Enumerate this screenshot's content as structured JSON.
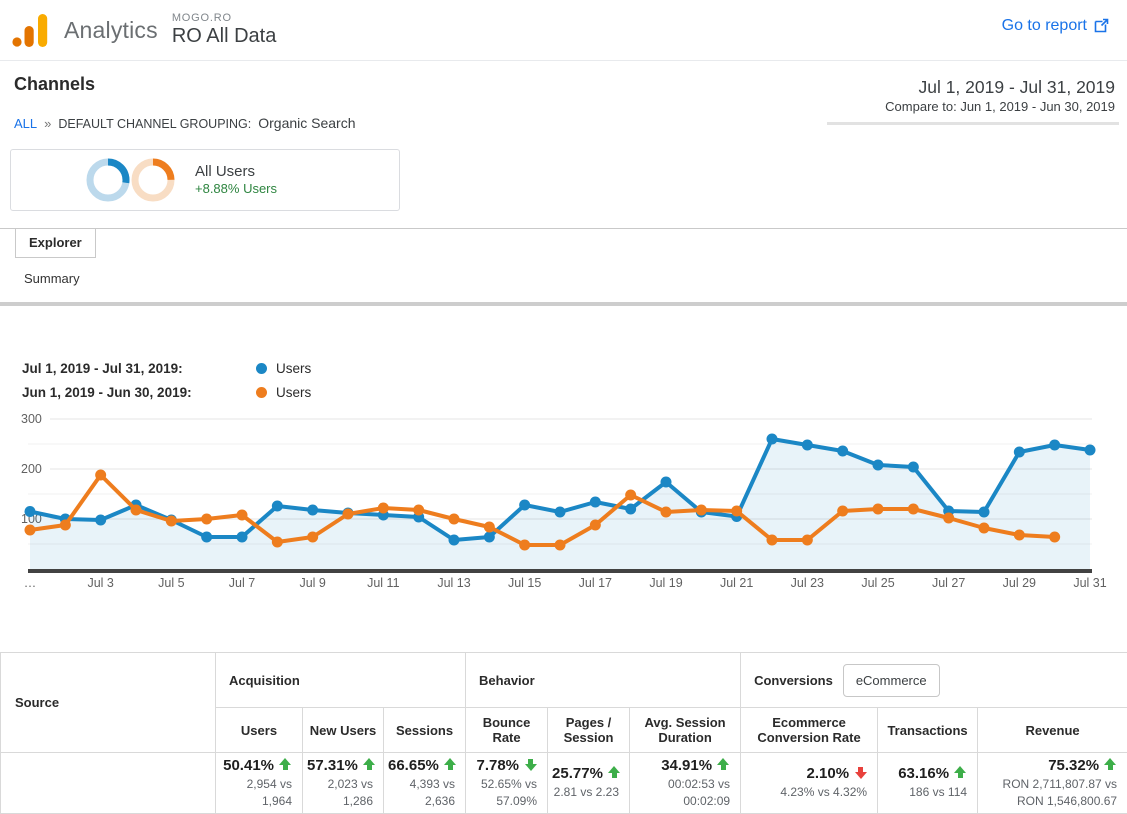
{
  "header": {
    "app_name": "Analytics",
    "account": "MOGO.RO",
    "view": "RO All Data",
    "go_to_report": "Go to report"
  },
  "report": {
    "title": "Channels",
    "breadcrumb": {
      "all": "ALL",
      "separator": "»",
      "label": "DEFAULT CHANNEL GROUPING:",
      "value": "Organic Search"
    },
    "date_range": "Jul 1, 2019 - Jul 31, 2019",
    "compare_to": "Compare to: Jun 1, 2019 - Jun 30, 2019",
    "segment": {
      "name": "All Users",
      "change": "+8.88% Users"
    },
    "tab": "Explorer",
    "subtab": "Summary"
  },
  "colors": {
    "blue": "#1b87c5",
    "blue_light": "#bcd9ec",
    "orange": "#ee7d1e",
    "orange_light": "#f8ddc4",
    "green": "#2e8540",
    "link_blue": "#1a73e8"
  },
  "legend": {
    "rows": [
      {
        "period": "Jul 1, 2019 - Jul 31, 2019:",
        "series": "Users",
        "color": "#1b87c5"
      },
      {
        "period": "Jun 1, 2019 - Jun 30, 2019:",
        "series": "Users",
        "color": "#ee7d1e"
      }
    ]
  },
  "chart_data": {
    "type": "line",
    "title": "",
    "xlabel": "",
    "ylabel": "Users",
    "ylim": [
      0,
      330
    ],
    "y_ticks": [
      100,
      200,
      300
    ],
    "y_minor_ticks": [
      50,
      150,
      250
    ],
    "x_labels": [
      "…",
      "Jul 3",
      "Jul 5",
      "Jul 7",
      "Jul 9",
      "Jul 11",
      "Jul 13",
      "Jul 15",
      "Jul 17",
      "Jul 19",
      "Jul 21",
      "Jul 23",
      "Jul 25",
      "Jul 27",
      "Jul 29",
      "Jul 31"
    ],
    "x_label_every": 2,
    "days": 31,
    "series": [
      {
        "name": "Users",
        "period": "Jul 1, 2019 - Jul 31, 2019",
        "color": "#1b87c5",
        "area_fill": "rgba(27,135,197,0.10)",
        "values": [
          115,
          100,
          98,
          128,
          98,
          64,
          64,
          126,
          118,
          112,
          108,
          104,
          58,
          64,
          128,
          114,
          134,
          120,
          174,
          114,
          105,
          260,
          248,
          236,
          208,
          204,
          116,
          114,
          234,
          248,
          238
        ]
      },
      {
        "name": "Users",
        "period": "Jun 1, 2019 - Jun 30, 2019",
        "color": "#ee7d1e",
        "area_fill": null,
        "values": [
          78,
          88,
          188,
          118,
          96,
          100,
          108,
          54,
          64,
          110,
          122,
          118,
          100,
          84,
          48,
          48,
          88,
          148,
          114,
          118,
          116,
          58,
          58,
          116,
          120,
          120,
          102,
          82,
          68,
          64
        ]
      }
    ],
    "legend_position": "top-left",
    "grid": true
  },
  "table": {
    "source_header": "Source",
    "groups": [
      {
        "label": "Acquisition"
      },
      {
        "label": "Behavior"
      },
      {
        "label": "Conversions",
        "selector": "eCommerce"
      }
    ],
    "metrics": [
      {
        "header": "Users",
        "pct": "50.41%",
        "arrow_class": "arrow up green",
        "compare": "2,954 vs\n1,964"
      },
      {
        "header": "New Users",
        "pct": "57.31%",
        "arrow_class": "arrow up green",
        "compare": "2,023 vs\n1,286"
      },
      {
        "header": "Sessions",
        "pct": "66.65%",
        "arrow_class": "arrow up green",
        "compare": "4,393 vs\n2,636"
      },
      {
        "header": "Bounce Rate",
        "pct": "7.78%",
        "arrow_class": "arrow down green",
        "compare": "52.65% vs\n57.09%"
      },
      {
        "header": "Pages / Session",
        "pct": "25.77%",
        "arrow_class": "arrow up green",
        "compare": "2.81 vs 2.23"
      },
      {
        "header": "Avg. Session Duration",
        "pct": "34.91%",
        "arrow_class": "arrow up green",
        "compare": "00:02:53 vs\n00:02:09"
      },
      {
        "header": "Ecommerce Conversion Rate",
        "pct": "2.10%",
        "arrow_class": "arrow down red",
        "compare": "4.23% vs 4.32%"
      },
      {
        "header": "Transactions",
        "pct": "63.16%",
        "arrow_class": "arrow up green",
        "compare": "186 vs 114"
      },
      {
        "header": "Revenue",
        "pct": "75.32%",
        "arrow_class": "arrow up green",
        "compare": "RON 2,711,807.87 vs\nRON 1,546,800.67"
      }
    ]
  }
}
